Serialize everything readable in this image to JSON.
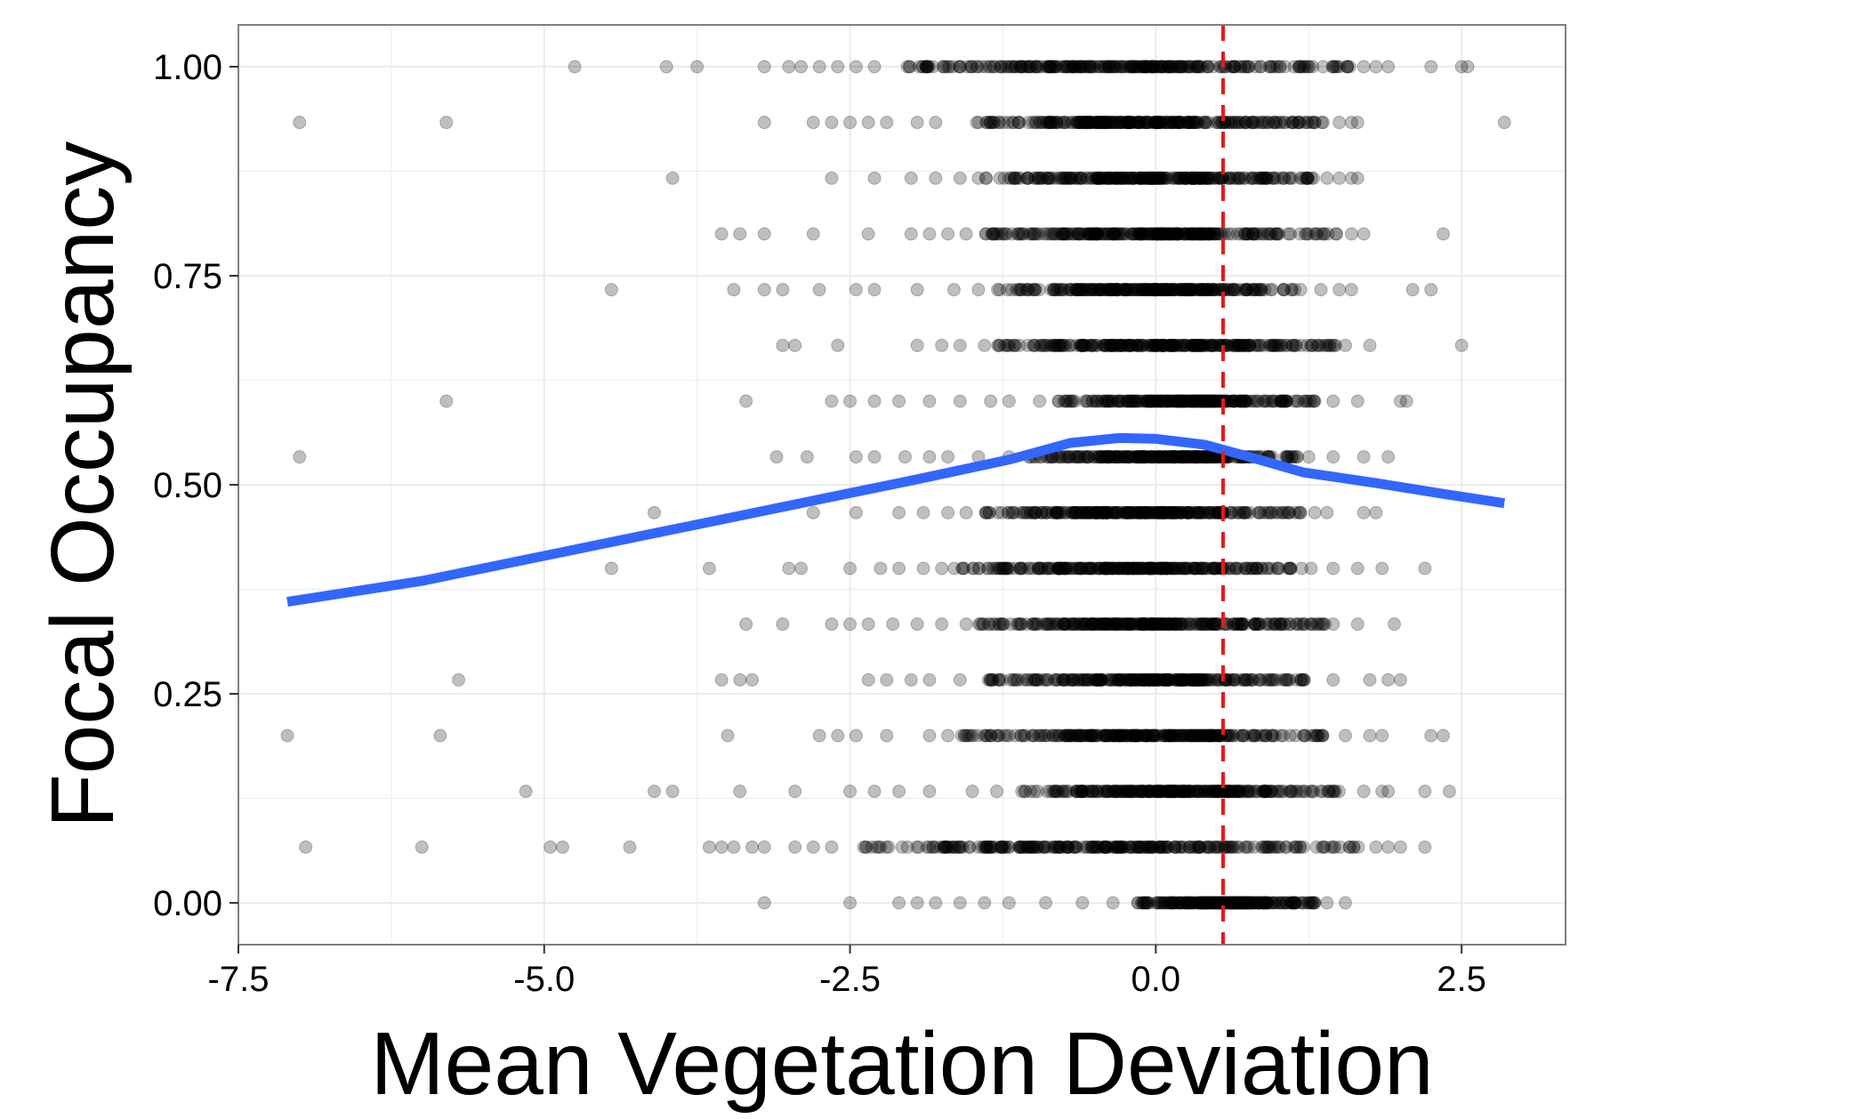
{
  "colors": {
    "panel_border": "#7f7f7f",
    "grid": "#ebebeb",
    "points": "#000000",
    "smooth_line": "#3366ff",
    "reference_line": "#e41a1c"
  },
  "chart_data": {
    "type": "scatter",
    "title": "",
    "xlabel": "Mean Vegetation Deviation",
    "ylabel": "Focal Occupancy",
    "xlim": [
      -7.5,
      3.35
    ],
    "ylim": [
      -0.05,
      1.05
    ],
    "x_ticks": [
      -7.5,
      -5.0,
      -2.5,
      0.0,
      2.5
    ],
    "x_tick_labels": [
      "-7.5",
      "-5.0",
      "-2.5",
      "0.0",
      "2.5"
    ],
    "y_ticks": [
      0.0,
      0.25,
      0.5,
      0.75,
      1.0
    ],
    "y_tick_labels": [
      "0.00",
      "0.25",
      "0.50",
      "0.75",
      "1.00"
    ],
    "grid": true,
    "legend": "none",
    "reference_line": {
      "orientation": "vertical",
      "x": 0.55,
      "style": "dashed"
    },
    "smooth_curve": [
      [
        -7.1,
        0.36
      ],
      [
        -6.0,
        0.385
      ],
      [
        -5.0,
        0.415
      ],
      [
        -4.0,
        0.445
      ],
      [
        -3.0,
        0.475
      ],
      [
        -2.0,
        0.505
      ],
      [
        -1.2,
        0.53
      ],
      [
        -0.7,
        0.55
      ],
      [
        -0.3,
        0.556
      ],
      [
        0.0,
        0.555
      ],
      [
        0.4,
        0.548
      ],
      [
        0.8,
        0.532
      ],
      [
        1.2,
        0.515
      ],
      [
        1.8,
        0.502
      ],
      [
        2.4,
        0.488
      ],
      [
        2.85,
        0.478
      ]
    ],
    "series": [
      {
        "point_style": "semi-transparent circle",
        "rows": [
          {
            "y": 1.0,
            "x": [
              -4.75,
              -4.0,
              -3.75,
              -3.2,
              -3.0,
              -2.9,
              -2.75,
              -2.6,
              -2.45,
              -2.3
            ],
            "dense_range": [
              -2.2,
              1.6
            ],
            "scatter_x": [
              1.7,
              1.8,
              1.9,
              2.25,
              2.5,
              2.55
            ]
          },
          {
            "y": 0.9333333,
            "x": [
              -7.0,
              -5.8,
              -3.2,
              -2.8,
              -2.65,
              -2.5,
              -2.35,
              -2.2,
              -1.95,
              -1.8
            ],
            "dense_range": [
              -1.6,
              1.4
            ],
            "scatter_x": [
              1.5,
              1.6,
              1.65,
              2.85
            ]
          },
          {
            "y": 0.8666667,
            "x": [
              -3.95,
              -2.65,
              -2.3,
              -2.0,
              -1.8,
              -1.6,
              -1.45
            ],
            "dense_range": [
              -1.4,
              1.3
            ],
            "scatter_x": [
              1.4,
              1.5,
              1.6,
              1.65
            ]
          },
          {
            "y": 0.8,
            "x": [
              -3.55,
              -3.4,
              -3.2,
              -2.8,
              -2.35,
              -2.0,
              -1.85,
              -1.7,
              -1.55
            ],
            "dense_range": [
              -1.4,
              1.5
            ],
            "scatter_x": [
              1.6,
              1.7,
              2.35
            ]
          },
          {
            "y": 0.7333333,
            "x": [
              -4.45,
              -3.45,
              -3.2,
              -3.05,
              -2.75,
              -2.45,
              -2.3,
              -1.95,
              -1.65,
              -1.45
            ],
            "dense_range": [
              -1.3,
              1.2
            ],
            "scatter_x": [
              1.35,
              1.5,
              1.6,
              2.1,
              2.25
            ]
          },
          {
            "y": 0.6666667,
            "x": [
              -3.05,
              -2.95,
              -2.6,
              -1.95,
              -1.75,
              -1.6,
              -1.4
            ],
            "dense_range": [
              -1.3,
              1.5
            ],
            "scatter_x": [
              1.55,
              1.75,
              2.5
            ]
          },
          {
            "y": 0.6,
            "x": [
              -5.8,
              -3.35,
              -2.65,
              -2.5,
              -2.3,
              -2.1,
              -1.85,
              -1.6,
              -1.35,
              -1.2,
              -0.95
            ],
            "dense_range": [
              -0.8,
              1.3
            ],
            "scatter_x": [
              1.45,
              1.65,
              2.0,
              2.05
            ]
          },
          {
            "y": 0.5333333,
            "x": [
              -7.0,
              -3.1,
              -2.85,
              -2.45,
              -2.3,
              -2.05,
              -1.85,
              -1.7,
              -1.45,
              -1.2
            ],
            "dense_range": [
              -1.05,
              1.2
            ],
            "scatter_x": [
              1.25,
              1.45,
              1.7,
              1.9
            ]
          },
          {
            "y": 0.4666667,
            "x": [
              -4.1,
              -2.8,
              -2.45,
              -2.1,
              -1.9,
              -1.7,
              -1.55
            ],
            "dense_range": [
              -1.4,
              1.2
            ],
            "scatter_x": [
              1.3,
              1.4,
              1.7,
              1.8
            ]
          },
          {
            "y": 0.4,
            "x": [
              -4.45,
              -3.65,
              -3.0,
              -2.9,
              -2.5,
              -2.25,
              -2.1,
              -1.9,
              -1.75
            ],
            "dense_range": [
              -1.65,
              1.3
            ],
            "scatter_x": [
              1.45,
              1.65,
              1.85,
              2.2
            ]
          },
          {
            "y": 0.3333333,
            "x": [
              -3.35,
              -3.05,
              -2.65,
              -2.5,
              -2.35,
              -2.15,
              -1.95,
              -1.75,
              -1.55
            ],
            "dense_range": [
              -1.45,
              1.4
            ],
            "scatter_x": [
              1.45,
              1.65,
              1.95
            ]
          },
          {
            "y": 0.2666667,
            "x": [
              -5.7,
              -3.55,
              -3.4,
              -3.3,
              -2.35,
              -2.2,
              -2.0,
              -1.85,
              -1.6
            ],
            "dense_range": [
              -1.4,
              1.3
            ],
            "scatter_x": [
              1.45,
              1.75,
              1.9,
              2.0
            ]
          },
          {
            "y": 0.2,
            "x": [
              -7.1,
              -5.85,
              -3.5,
              -2.75,
              -2.6,
              -2.45,
              -2.2,
              -1.85,
              -1.7
            ],
            "dense_range": [
              -1.6,
              1.4
            ],
            "scatter_x": [
              1.55,
              1.75,
              1.85,
              2.25,
              2.35
            ]
          },
          {
            "y": 0.1333333,
            "x": [
              -5.15,
              -4.1,
              -3.95,
              -3.4,
              -2.95,
              -2.5,
              -2.3,
              -2.1,
              -1.85,
              -1.5,
              -1.3
            ],
            "dense_range": [
              -1.1,
              1.5
            ],
            "scatter_x": [
              1.7,
              1.85,
              1.9,
              2.2,
              2.4
            ]
          },
          {
            "y": 0.0666667,
            "x": [
              -6.95,
              -6.0,
              -4.95,
              -4.85,
              -4.3,
              -3.65,
              -3.55,
              -3.45,
              -3.3,
              -3.2,
              -2.95,
              -2.8,
              -2.65
            ],
            "dense_range": [
              -2.4,
              1.7
            ],
            "scatter_x": [
              1.8,
              1.9,
              2.0,
              2.2
            ]
          },
          {
            "y": 0.0,
            "x": [
              -3.2,
              -2.5,
              -2.1,
              -1.95,
              -1.8,
              -1.6,
              -1.4,
              -1.2,
              -0.9,
              -0.6,
              -0.35
            ],
            "dense_range": [
              -0.15,
              1.3
            ],
            "scatter_x": [
              1.4,
              1.55
            ]
          }
        ]
      }
    ]
  }
}
